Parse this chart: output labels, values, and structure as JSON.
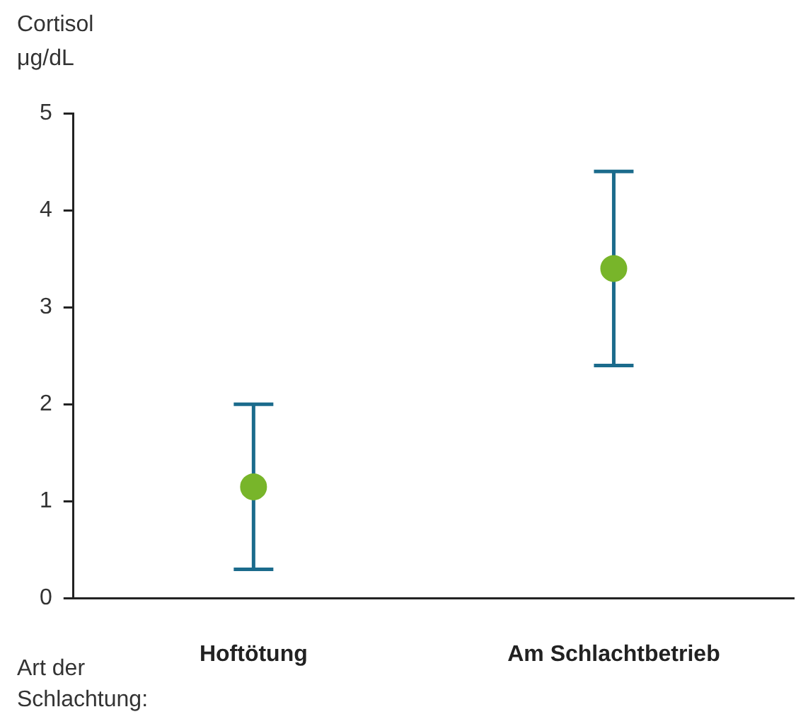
{
  "chart_data": {
    "type": "scatter",
    "ylabel": "Cortisol μg/dL",
    "xlabel": "Art der Schlachtung:",
    "categories": [
      "Hoftötung",
      "Am Schlachtbetrieb"
    ],
    "series": [
      {
        "color": "#78b52a",
        "values": [
          1.15,
          3.4
        ],
        "errors": [
          [
            0.3,
            2.0
          ],
          [
            2.4,
            4.4
          ]
        ]
      }
    ],
    "ylim": [
      0,
      5
    ],
    "yticks": [
      0,
      1,
      2,
      3,
      4,
      5
    ],
    "grid": false,
    "legend": false,
    "marker": "circle"
  }
}
